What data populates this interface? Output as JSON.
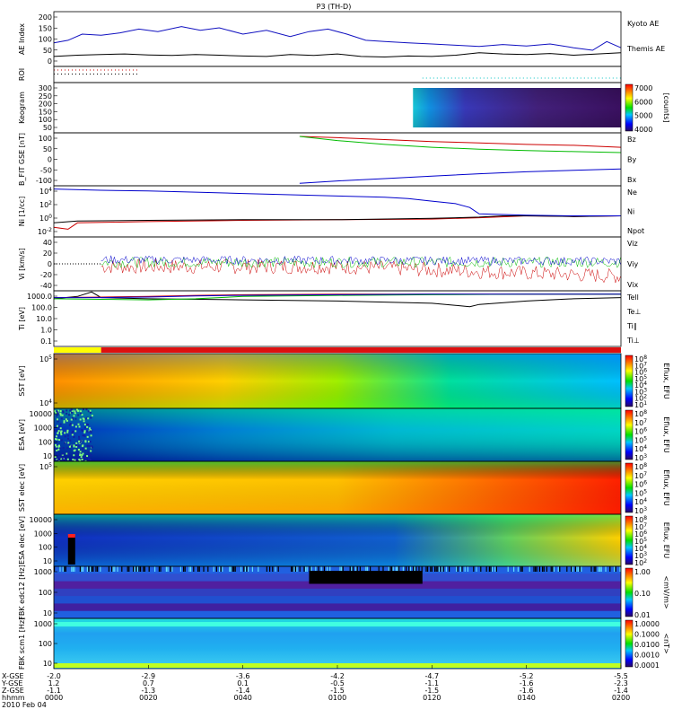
{
  "title": "P3 (TH-D)",
  "chart_data": {
    "type": "line",
    "title": "P3 (TH-D)",
    "panels": [
      {
        "id": "ae",
        "ylabel": "AE Index",
        "yticks": [
          "200",
          "150",
          "100",
          "50",
          "0"
        ],
        "ylim": [
          -10,
          210
        ],
        "series": [
          {
            "name": "Kyoto AE",
            "color": "#1010c0",
            "x": [
              0,
              3,
              6,
              10,
              14,
              18,
              22,
              27,
              31,
              35,
              40,
              45,
              50,
              54,
              58,
              62,
              66,
              70,
              75,
              80,
              85,
              90,
              95,
              100,
              105,
              110,
              114,
              117,
              120
            ],
            "y": [
              85,
              95,
              120,
              115,
              125,
              140,
              130,
              150,
              135,
              145,
              120,
              135,
              110,
              130,
              140,
              120,
              95,
              90,
              85,
              80,
              75,
              70,
              78,
              72,
              80,
              65,
              55,
              90,
              65
            ]
          },
          {
            "name": "Themis AE",
            "color": "#000000",
            "x": [
              0,
              5,
              10,
              15,
              20,
              25,
              30,
              35,
              40,
              45,
              50,
              55,
              60,
              65,
              70,
              75,
              80,
              85,
              90,
              95,
              100,
              105,
              110,
              115,
              120
            ],
            "y": [
              30,
              35,
              38,
              40,
              36,
              34,
              38,
              35,
              32,
              30,
              38,
              34,
              40,
              30,
              28,
              32,
              30,
              35,
              45,
              40,
              38,
              42,
              35,
              40,
              45
            ]
          }
        ]
      },
      {
        "id": "roi",
        "ylabel": "ROI",
        "rows": [
          {
            "color": "#cc0000",
            "x_start": 0,
            "x_end": 18
          },
          {
            "color": "#000000",
            "x_start": 0,
            "x_end": 18
          },
          {
            "color": "#00c0c0",
            "x_start": 78,
            "x_end": 120
          }
        ]
      },
      {
        "id": "keogram",
        "ylabel": "Keogram",
        "yticks": [
          "300",
          "250",
          "200",
          "150",
          "100",
          "50"
        ],
        "image_x_start": 76,
        "colorbar": {
          "ticks": [
            "7000",
            "6000",
            "5000",
            "4000"
          ],
          "label": "[counts]"
        }
      },
      {
        "id": "bfit",
        "ylabel": "B_FIT GSE [nT]",
        "yticks": [
          "100",
          "50",
          "0",
          "-50",
          "-100"
        ],
        "ylim": [
          -110,
          110
        ],
        "series": [
          {
            "name": "Bz",
            "color": "#cc0000",
            "x": [
              52,
              60,
              70,
              80,
              90,
              100,
              110,
              120
            ],
            "y": [
              95,
              90,
              82,
              74,
              68,
              62,
              58,
              50
            ]
          },
          {
            "name": "By",
            "color": "#00bb00",
            "x": [
              52,
              60,
              70,
              80,
              90,
              100,
              110,
              120
            ],
            "y": [
              95,
              78,
              62,
              50,
              42,
              36,
              32,
              28
            ]
          },
          {
            "name": "Bx",
            "color": "#0000cc",
            "x": [
              52,
              60,
              70,
              80,
              90,
              100,
              110,
              120
            ],
            "y": [
              -100,
              -90,
              -80,
              -70,
              -60,
              -52,
              -46,
              -40
            ]
          }
        ]
      },
      {
        "id": "density",
        "ylabel": "Ni [1/cc]",
        "yticks": [
          "10^4",
          "10^2",
          "10^0",
          "10^-2"
        ],
        "ylim": [
          -3,
          5
        ],
        "series": [
          {
            "name": "Ne",
            "color": "#cc0000",
            "x": [
              0,
              3,
              5,
              20,
              40,
              60,
              80,
              90,
              100,
              110,
              120
            ],
            "y": [
              -1.5,
              -1.8,
              -0.8,
              -0.6,
              -0.4,
              -0.3,
              -0.2,
              0,
              0.3,
              0.2,
              0.3
            ]
          },
          {
            "name": "Ni",
            "color": "#000000",
            "x": [
              0,
              5,
              20,
              40,
              60,
              80,
              90,
              95,
              100,
              110,
              120
            ],
            "y": [
              -0.8,
              -0.5,
              -0.4,
              -0.3,
              -0.3,
              -0.1,
              0.1,
              0.3,
              0.3,
              0.2,
              0.3
            ]
          },
          {
            "name": "Npot",
            "color": "#0000cc",
            "x": [
              0,
              10,
              20,
              30,
              40,
              50,
              60,
              70,
              75,
              80,
              85,
              88,
              90,
              100,
              110,
              120
            ],
            "y": [
              4.5,
              4.3,
              4.2,
              4.0,
              3.8,
              3.6,
              3.4,
              3.2,
              3.0,
              2.6,
              2.2,
              1.6,
              0.6,
              0.4,
              0.3,
              0.3
            ]
          }
        ]
      },
      {
        "id": "velocity",
        "ylabel": "Vi [km/s]",
        "yticks": [
          "40",
          "20",
          "0",
          "-20",
          "-40"
        ],
        "ylim": [
          -50,
          50
        ],
        "series": [
          {
            "name": "Viz",
            "color": "#cc0000"
          },
          {
            "name": "Viy",
            "color": "#00bb00"
          },
          {
            "name": "Vix",
            "color": "#0000cc"
          }
        ]
      },
      {
        "id": "temperature",
        "ylabel": "Ti [eV]",
        "yticks": [
          "1000.0",
          "100.0",
          "10.0",
          "1.0",
          "0.1"
        ],
        "ylim": [
          -1.3,
          3.6
        ],
        "series": [
          {
            "name": "Tell",
            "color": "#000000",
            "x": [
              0,
              5,
              8,
              10,
              20,
              40,
              60,
              80,
              88,
              90,
              100,
              110,
              120
            ],
            "y": [
              2.9,
              3.1,
              3.5,
              3.0,
              2.9,
              2.8,
              2.7,
              2.5,
              2.2,
              2.4,
              2.7,
              2.9,
              3.0
            ]
          },
          {
            "name": "Te⊥",
            "color": "#cc0000",
            "x": [
              0,
              10,
              20,
              30,
              40,
              60,
              80,
              100,
              120
            ],
            "y": [
              3.0,
              3.05,
              3.1,
              3.2,
              3.25,
              3.3,
              3.3,
              3.3,
              3.3
            ]
          },
          {
            "name": "Ti∥",
            "color": "#00bb00",
            "x": [
              0,
              10,
              20,
              30,
              35,
              40,
              60,
              80,
              100,
              120
            ],
            "y": [
              2.9,
              2.85,
              2.8,
              2.9,
              3.0,
              3.1,
              3.2,
              3.25,
              3.3,
              3.3
            ]
          },
          {
            "name": "Ti⊥",
            "color": "#0000cc",
            "x": [
              0,
              10,
              20,
              30,
              40,
              60,
              80,
              100,
              120
            ],
            "y": [
              3.0,
              3.0,
              3.05,
              3.15,
              3.2,
              3.25,
              3.3,
              3.3,
              3.3
            ]
          }
        ]
      },
      {
        "id": "flag",
        "colors": [
          {
            "color": "#ffff00",
            "x_start": 0,
            "x_end": 10
          },
          {
            "color": "#dd1010",
            "x_start": 10,
            "x_end": 120
          }
        ]
      },
      {
        "id": "sst_ion",
        "ylabel": "SST [eV]",
        "yticks": [
          "10^5",
          "10^4"
        ],
        "colorbar": {
          "ticks": [
            "10^8",
            "10^7",
            "10^6",
            "10^5",
            "10^4",
            "10^3",
            "10^2",
            "10^1"
          ],
          "label": "Eflux, EFU"
        }
      },
      {
        "id": "esa_ion",
        "ylabel": "ESA [eV]",
        "yticks": [
          "10000",
          "1000",
          "100",
          "10"
        ],
        "colorbar": {
          "ticks": [
            "10^8",
            "10^7",
            "10^6",
            "10^5",
            "10^4",
            "10^3"
          ],
          "label": "Eflux, EFU"
        }
      },
      {
        "id": "sst_elec",
        "ylabel": "SST elec [eV]",
        "yticks": [
          "10^5"
        ],
        "colorbar": {
          "ticks": [
            "10^8",
            "10^7",
            "10^6",
            "10^5",
            "10^4",
            "10^3"
          ],
          "label": "Eflux, EFU"
        }
      },
      {
        "id": "esa_elec",
        "ylabel": "ESA elec [eV]",
        "yticks": [
          "10000",
          "1000",
          "100",
          "10"
        ],
        "colorbar": {
          "ticks": [
            "10^8",
            "10^7",
            "10^6",
            "10^5",
            "10^4",
            "10^3",
            "10^2"
          ],
          "label": "Eflux, EFU"
        }
      },
      {
        "id": "fbk_e",
        "ylabel": "FBK edc12 [Hz]",
        "yticks": [
          "1000",
          "100",
          "10"
        ],
        "colorbar": {
          "ticks": [
            "1.00",
            "0.10",
            "0.01"
          ],
          "label": "<mV/m>"
        }
      },
      {
        "id": "fbk_b",
        "ylabel": "FBK scm1 [Hz]",
        "yticks": [
          "1000",
          "100",
          "10"
        ],
        "colorbar": {
          "ticks": [
            "1.0000",
            "0.1000",
            "0.0100",
            "0.0010",
            "0.0001"
          ],
          "label": "<nT>"
        }
      }
    ],
    "x_axis": {
      "row_labels": [
        "X-GSE",
        "Y-GSE",
        "Z-GSE",
        "hhmm",
        "2010 Feb 04"
      ],
      "ticks": [
        {
          "x": 0,
          "values": [
            "-2.0",
            "1.2",
            "-1.1",
            "0000"
          ]
        },
        {
          "x": 20,
          "values": [
            "-2.9",
            "0.7",
            "-1.3",
            "0020"
          ]
        },
        {
          "x": 40,
          "values": [
            "-3.6",
            "0.1",
            "-1.4",
            "0040"
          ]
        },
        {
          "x": 60,
          "values": [
            "-4.2",
            "-0.5",
            "-1.5",
            "0100"
          ]
        },
        {
          "x": 80,
          "values": [
            "-4.7",
            "-1.1",
            "-1.5",
            "0120"
          ]
        },
        {
          "x": 100,
          "values": [
            "-5.2",
            "-1.6",
            "-1.6",
            "0140"
          ]
        },
        {
          "x": 120,
          "values": [
            "-5.5",
            "-2.3",
            "-1.4",
            "0200"
          ]
        }
      ],
      "xlim": [
        0,
        120
      ]
    }
  }
}
